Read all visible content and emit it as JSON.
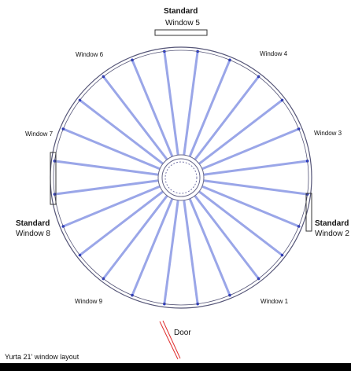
{
  "caption": "Yurta 21' window layout",
  "door": {
    "label": "Door"
  },
  "windows": [
    {
      "label": "Window 1",
      "standard": false
    },
    {
      "label": "Window 2",
      "standard": true
    },
    {
      "label": "Window 3",
      "standard": false
    },
    {
      "label": "Window 4",
      "standard": false
    },
    {
      "label": "Window 5",
      "standard": true
    },
    {
      "label": "Window 6",
      "standard": false
    },
    {
      "label": "Window 7",
      "standard": false
    },
    {
      "label": "Window 8",
      "standard": true
    },
    {
      "label": "Window 9",
      "standard": false
    }
  ],
  "standard_label": "Standard",
  "rafter_count": 24,
  "colors": {
    "wall": "#555577",
    "rafter": "#9aa6e8",
    "rafter_dot": "#2233cc",
    "door": "#e03030",
    "crown": "#666688",
    "background": "#ffffff"
  }
}
